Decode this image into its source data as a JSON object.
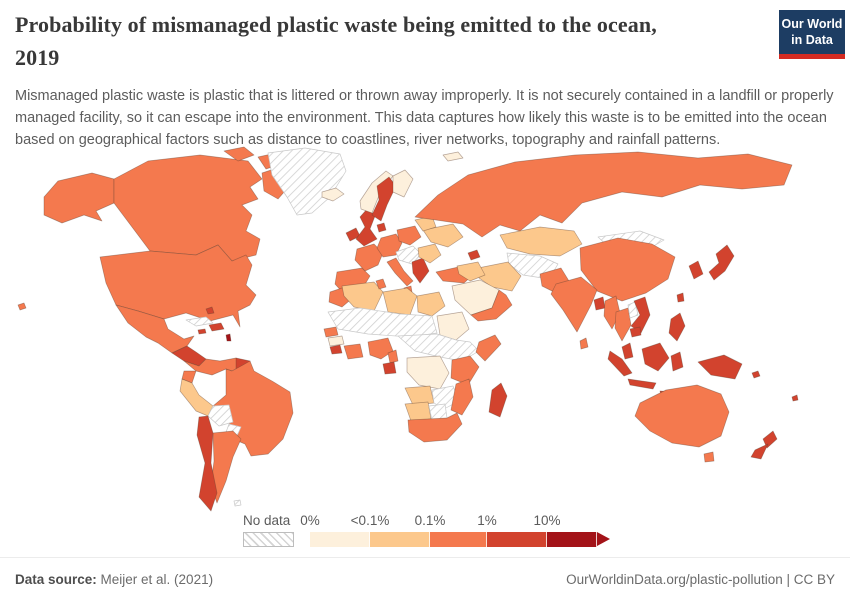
{
  "page": {
    "title_lines": [
      "Probability of mismanaged plastic waste being emitted to the ocean,",
      "2019"
    ],
    "subtitle": "Mismanaged plastic waste is plastic that is littered or thrown away improperly. It is not securely contained in a landfill or properly managed facility, so it can escape into the environment. This data captures how likely this waste is to be emitted into the ocean based on geographical factors such as distance to coastlines, river networks, topography and rainfall patterns.",
    "logo": {
      "line1": "Our World",
      "line2": "in Data",
      "bg_color": "#1d3d63",
      "accent_color": "#d42b22"
    }
  },
  "footer": {
    "source_label": "Data source:",
    "source_value": " Meijer et al. (2021)",
    "credit": "OurWorldinData.org/plastic-pollution | CC BY"
  },
  "chart_data": {
    "type": "choropleth-map",
    "title": "Probability of mismanaged plastic waste being emitted to the ocean",
    "year": "2019",
    "unit": "%",
    "legend": {
      "no_data_label": "No data",
      "tick_labels": [
        "0%",
        "<0.1%",
        "0.1%",
        "1%",
        "10%"
      ],
      "colors": [
        "#fdf0dc",
        "#fcc88c",
        "#f4794e",
        "#d2432e",
        "#a31318"
      ],
      "hatch_color": "#c9c9c9",
      "border_color": "rgba(96,64,48,0.45)"
    },
    "regions": {
      "alaska": 2,
      "hawaii": 2,
      "canada": 2,
      "arctic-island-1": 2,
      "arctic-island-2": 2,
      "baffin-island": 2,
      "greenland": "no-data",
      "iceland": 0,
      "usa": 2,
      "mexico": 2,
      "central-america": 3,
      "cuba": "no-data",
      "jamaica": 3,
      "hispaniola": 3,
      "bahamas": 3,
      "lesser-antilles": 4,
      "colombia-venezuela": 2,
      "guyanas": 3,
      "ecuador": 2,
      "peru": 1,
      "brazil": 2,
      "bolivia": "no-data",
      "paraguay": "no-data",
      "chile": 3,
      "argentina": 2,
      "falkland-islands": "no-data",
      "ireland": 3,
      "uk": 3,
      "norway": 0,
      "sweden": 3,
      "finland": 0,
      "denmark": 3,
      "iberia": 2,
      "france": 2,
      "germany": 2,
      "poland-baltics": 2,
      "italy": 2,
      "sicily": 2,
      "central-europe": "no-data",
      "balkans-greece": 3,
      "romania-bulgaria": 1,
      "ukraine": 1,
      "belarus": 1,
      "turkey": 2,
      "caucasus": 3,
      "svalbard": 0,
      "russia": 2,
      "kazakhstan": 1,
      "central-asia": "no-data",
      "mongolia": "no-data",
      "china": 2,
      "korea": 3,
      "japan": 3,
      "taiwan": 3,
      "iran": 1,
      "iraq-syria": 1,
      "saudi-arabia": 0,
      "yemen-oman": 2,
      "morocco": 2,
      "algeria": 1,
      "tunisia": 2,
      "libya": 1,
      "egypt": 1,
      "sahel-belt": "no-data",
      "senegal": 2,
      "guinea": 0,
      "sierra-leone-liberia": 3,
      "ivory-coast-ghana": 2,
      "nigeria": 2,
      "cameroon": 2,
      "gabon": 3,
      "sudan": 0,
      "east-africa-interior": "no-data",
      "somalia": 2,
      "kenya-tanzania": 2,
      "drc": 0,
      "angola": 1,
      "zambia-zimbabwe": "no-data",
      "mozambique": 2,
      "namibia": 1,
      "botswana": "no-data",
      "south-africa": 2,
      "madagascar": 3,
      "pakistan": 2,
      "india": 2,
      "bangladesh": 3,
      "sri-lanka": 2,
      "myanmar": 2,
      "thailand": 2,
      "laos": "no-data",
      "vietnam": 3,
      "cambodia": 3,
      "malay-peninsula": 3,
      "sumatra": 3,
      "java": 3,
      "borneo": 3,
      "sulawesi": 3,
      "lesser-sunda": 3,
      "philippines": 3,
      "new-guinea": 3,
      "solomon-islands": 3,
      "fiji": 3,
      "australia": 2,
      "tasmania": 2,
      "new-zealand-north": 3,
      "new-zealand-south": 3
    }
  }
}
